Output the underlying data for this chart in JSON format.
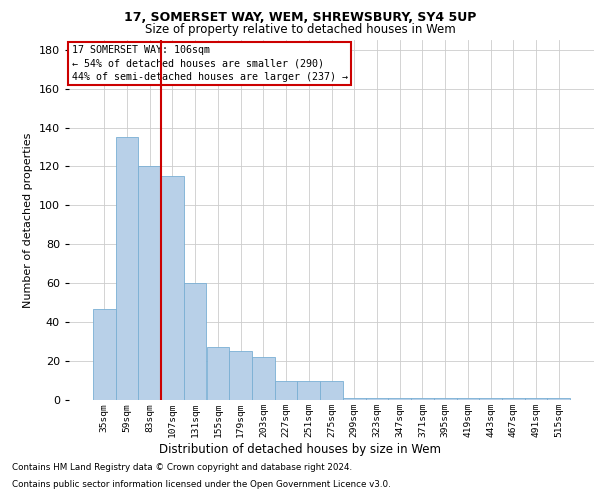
{
  "title1": "17, SOMERSET WAY, WEM, SHREWSBURY, SY4 5UP",
  "title2": "Size of property relative to detached houses in Wem",
  "xlabel": "Distribution of detached houses by size in Wem",
  "ylabel": "Number of detached properties",
  "categories": [
    "35sqm",
    "59sqm",
    "83sqm",
    "107sqm",
    "131sqm",
    "155sqm",
    "179sqm",
    "203sqm",
    "227sqm",
    "251sqm",
    "275sqm",
    "299sqm",
    "323sqm",
    "347sqm",
    "371sqm",
    "395sqm",
    "419sqm",
    "443sqm",
    "467sqm",
    "491sqm",
    "515sqm"
  ],
  "values": [
    47,
    135,
    120,
    115,
    60,
    27,
    25,
    22,
    10,
    10,
    10,
    1,
    1,
    1,
    1,
    1,
    1,
    1,
    1,
    1,
    1
  ],
  "bar_color": "#b8d0e8",
  "bar_edge_color": "#7aafd4",
  "background_color": "#ffffff",
  "grid_color": "#cccccc",
  "annotation_line1": "17 SOMERSET WAY: 106sqm",
  "annotation_line2": "← 54% of detached houses are smaller (290)",
  "annotation_line3": "44% of semi-detached houses are larger (237) →",
  "vline_x": 2.5,
  "vline_color": "#cc0000",
  "ylim": [
    0,
    185
  ],
  "yticks": [
    0,
    20,
    40,
    60,
    80,
    100,
    120,
    140,
    160,
    180
  ],
  "footer1": "Contains HM Land Registry data © Crown copyright and database right 2024.",
  "footer2": "Contains public sector information licensed under the Open Government Licence v3.0."
}
